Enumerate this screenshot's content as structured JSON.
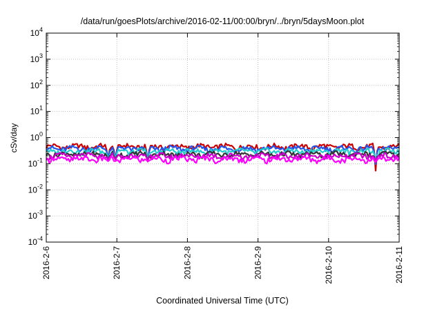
{
  "chart_data": {
    "type": "line",
    "title": "/data/run/goesPlots/archive/2016-02-11/00:00/bryn/../bryn/5daysMoon.plot",
    "xlabel": "Coordinated Universal Time (UTC)",
    "ylabel": "cSv/day",
    "y_scale": "log",
    "ylim": [
      0.0001,
      10000
    ],
    "y_ticks": [
      {
        "base": "10",
        "exp": "-4",
        "value": 0.0001
      },
      {
        "base": "10",
        "exp": "-3",
        "value": 0.001
      },
      {
        "base": "10",
        "exp": "-2",
        "value": 0.01
      },
      {
        "base": "10",
        "exp": "-1",
        "value": 0.1
      },
      {
        "base": "10",
        "exp": "0",
        "value": 1
      },
      {
        "base": "10",
        "exp": "1",
        "value": 10
      },
      {
        "base": "10",
        "exp": "2",
        "value": 100
      },
      {
        "base": "10",
        "exp": "3",
        "value": 1000
      },
      {
        "base": "10",
        "exp": "4",
        "value": 10000
      }
    ],
    "x_ticks": [
      "2016-2-6",
      "2016-2-7",
      "2016-2-8",
      "2016-2-9",
      "2016-2-10",
      "2016-2-11"
    ],
    "xlim": [
      "2016-2-6",
      "2016-2-11"
    ],
    "grid": true,
    "legend": "none",
    "series": [
      {
        "color": "#cc0000",
        "baseline": 0.45
      },
      {
        "color": "#2255ee",
        "baseline": 0.38
      },
      {
        "color": "#22cccc",
        "baseline": 0.3
      },
      {
        "color": "#333333",
        "baseline": 0.23
      },
      {
        "color": "#cc00cc",
        "baseline": 0.2
      },
      {
        "color": "#ff00ff",
        "baseline": 0.15
      }
    ],
    "dips": [
      {
        "date": "2016-2-6",
        "hour": 21.0,
        "value": 0.05
      },
      {
        "date": "2016-2-6",
        "hour": 23.5,
        "value": 0.05
      },
      {
        "date": "2016-2-7",
        "hour": 10.5,
        "value": 0.04
      },
      {
        "date": "2016-2-10",
        "hour": 16.0,
        "value": 0.018
      }
    ]
  }
}
